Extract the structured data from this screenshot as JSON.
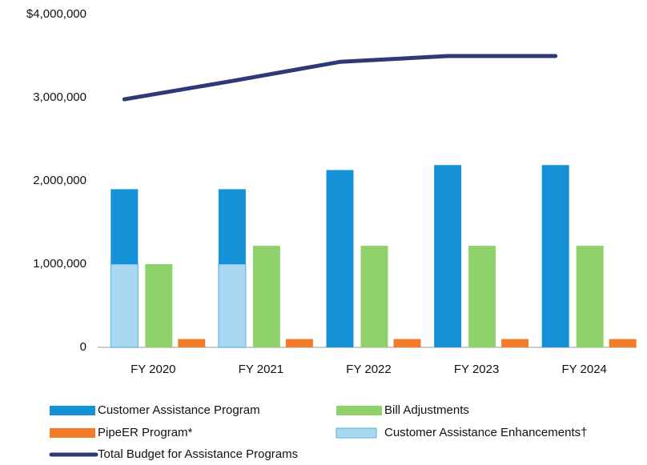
{
  "chart_data": {
    "type": "bar",
    "categories": [
      "FY 2020",
      "FY 2021",
      "FY 2022",
      "FY 2023",
      "FY 2024"
    ],
    "series": [
      {
        "name": "Customer Assistance Program",
        "color": "#1591d8",
        "values": [
          900000,
          900000,
          2130000,
          2190000,
          2190000
        ]
      },
      {
        "name": "Bill Adjustments",
        "color": "#8fd16b",
        "values": [
          1000000,
          1220000,
          1220000,
          1220000,
          1220000
        ]
      },
      {
        "name": "PipeER Program*",
        "color": "#f47b2a",
        "values": [
          100000,
          100000,
          100000,
          100000,
          100000
        ]
      },
      {
        "name": "Customer Assistance Enhancements†",
        "color": "#a8d8f2",
        "values": [
          1000000,
          1000000,
          null,
          null,
          null
        ]
      },
      {
        "name": "Total Budget for Assistance Programs",
        "color": "#2e3a78",
        "type": "line",
        "values": [
          2980000,
          3200000,
          3430000,
          3500000,
          3500000
        ]
      }
    ],
    "ylim": [
      0,
      4000000
    ],
    "yticks": [
      0,
      {
        "value": 1000000,
        "label": "1,000,000"
      },
      {
        "value": 2000000,
        "label": "2,000,000"
      },
      {
        "value": 3000000,
        "label": "3,000,000"
      },
      {
        "value": 4000000,
        "label": "$4,000,000"
      }
    ],
    "grid": false
  }
}
